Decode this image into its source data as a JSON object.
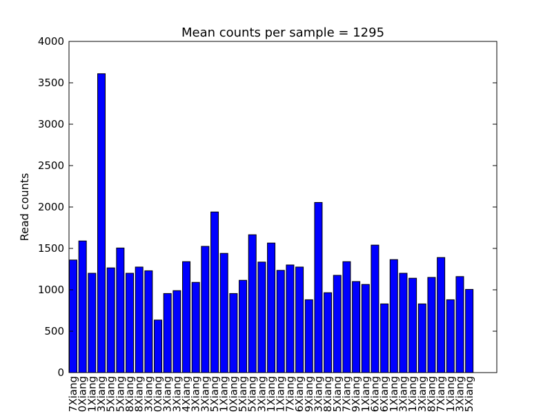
{
  "chart_data": {
    "type": "bar",
    "title": "Mean counts per sample = 1295",
    "ylabel": "Read counts",
    "xlabel": "",
    "ylim": [
      0,
      4000
    ],
    "yticks": [
      "0",
      "500",
      "1000",
      "1500",
      "2000",
      "2500",
      "3000",
      "3500",
      "4000"
    ],
    "grid": false,
    "bar_color": "#0000ff",
    "categories": [
      "7Xiang",
      "0Xiang",
      "1Xiang",
      "3Xiang",
      "5Xiang",
      "5Xiang",
      "8Xiang",
      "8Xiang",
      "3Xiang",
      "0Xiang",
      "3Xiang",
      "3Xiang",
      "4Xiang",
      "3Xiang",
      "3Xiang",
      "5Xiang",
      "1Xiang",
      "0Xiang",
      "5Xiang",
      "5Xiang",
      "3Xiang",
      "1Xiang",
      "1Xiang",
      "7Xiang",
      "6Xiang",
      "9Xiang",
      "3Xiang",
      "8Xiang",
      "5Xiang",
      "7Xiang",
      "9Xiang",
      "1Xiang",
      "6Xiang",
      "6Xiang",
      "1Xiang",
      "3Xiang",
      "1Xiang",
      "3Xiang",
      "8Xiang",
      "7Xiang",
      "1Xiang",
      "3Xiang",
      "5Xiang"
    ],
    "values": [
      1360,
      1590,
      1200,
      3610,
      1265,
      1505,
      1200,
      1275,
      1230,
      635,
      955,
      990,
      1340,
      1090,
      1525,
      1940,
      1440,
      955,
      1115,
      1665,
      1335,
      1565,
      1235,
      1300,
      1275,
      880,
      2055,
      965,
      1175,
      1340,
      1100,
      1065,
      1540,
      830,
      1365,
      1200,
      1140,
      830,
      1150,
      1390,
      880,
      1160,
      1005
    ]
  }
}
